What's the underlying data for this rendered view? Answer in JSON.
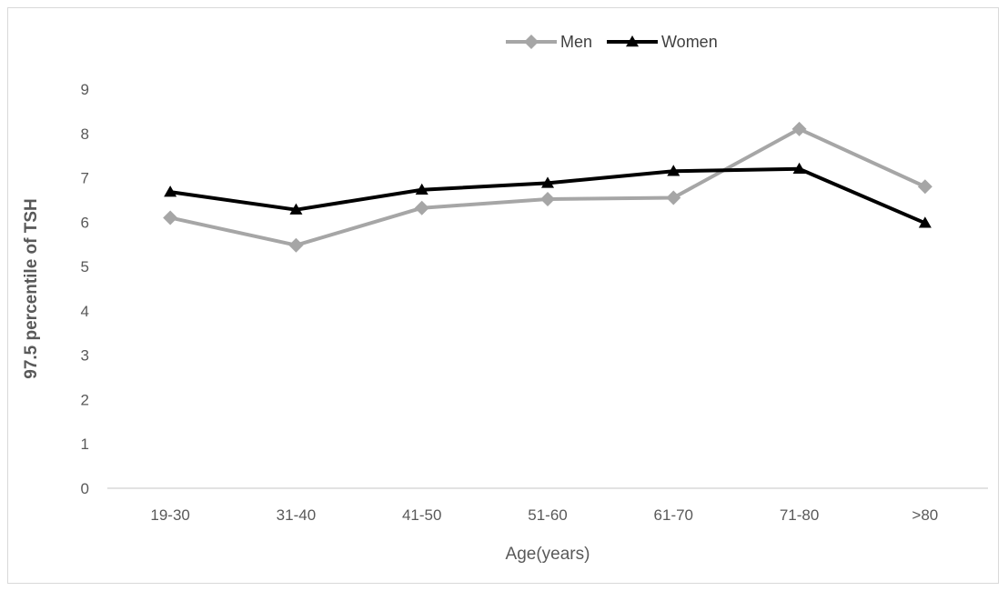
{
  "chart_data": {
    "type": "line",
    "title": "",
    "xlabel": "Age(years)",
    "ylabel": "97.5 percentile of TSH",
    "categories": [
      "19-30",
      "31-40",
      "41-50",
      "51-60",
      "61-70",
      "71-80",
      ">80"
    ],
    "ylim": [
      0,
      9
    ],
    "yticks": [
      "0",
      "1",
      "2",
      "3",
      "4",
      "5",
      "6",
      "7",
      "8",
      "9"
    ],
    "grid": false,
    "legend_position": "top",
    "series": [
      {
        "name": "Men",
        "values": [
          6.1,
          5.48,
          6.32,
          6.52,
          6.55,
          8.1,
          6.8
        ],
        "color": "#a6a6a6",
        "marker": "diamond"
      },
      {
        "name": "Women",
        "values": [
          6.68,
          6.28,
          6.73,
          6.88,
          7.15,
          7.2,
          5.98
        ],
        "color": "#000000",
        "marker": "triangle"
      }
    ]
  }
}
